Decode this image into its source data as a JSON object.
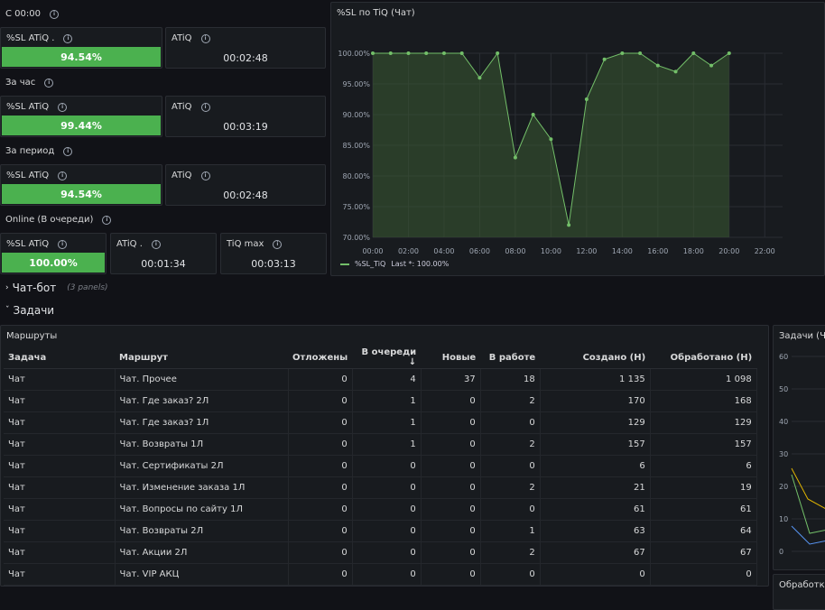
{
  "colors": {
    "accent_green": "#4bb14f",
    "panel_bg": "#181b1f",
    "page_bg": "#111217",
    "line_green": "#73bf69"
  },
  "sections": {
    "since_midnight": "С 00:00",
    "per_hour": "За час",
    "per_period": "За период",
    "online": "Online (В очереди)"
  },
  "stats": {
    "sl_midnight": {
      "title": "%SL ATiQ .",
      "value": "94.54%"
    },
    "atiq_midnight": {
      "title": "ATiQ",
      "value": "00:02:48"
    },
    "sl_hour": {
      "title": "%SL ATiQ",
      "value": "99.44%"
    },
    "atiq_hour": {
      "title": "ATiQ",
      "value": "00:03:19"
    },
    "sl_period": {
      "title": "%SL ATiQ",
      "value": "94.54%"
    },
    "atiq_period": {
      "title": "ATiQ",
      "value": "00:02:48"
    },
    "sl_online": {
      "title": "%SL ATiQ",
      "value": "100.00%"
    },
    "atiq_online": {
      "title": "ATiQ .",
      "value": "00:01:34"
    },
    "tiq_max": {
      "title": "TiQ max",
      "value": "00:03:13"
    }
  },
  "chart_panel": {
    "title": "%SL по TiQ (Чат)",
    "legend_series": "%SL_TiQ",
    "legend_last": "Last *: 100.00%"
  },
  "chart_data": {
    "type": "area",
    "ylim": [
      70,
      100
    ],
    "yticks": [
      "100.00%",
      "95.00%",
      "90.00%",
      "85.00%",
      "80.00%",
      "75.00%",
      "70.00%"
    ],
    "xticks": [
      "00:00",
      "02:00",
      "04:00",
      "06:00",
      "08:00",
      "10:00",
      "12:00",
      "14:00",
      "16:00",
      "18:00",
      "20:00",
      "22:00"
    ],
    "xlim": [
      0,
      23
    ],
    "x": [
      0,
      1,
      2,
      3,
      4,
      5,
      6,
      7,
      8,
      9,
      10,
      11,
      12,
      13,
      14,
      15,
      16,
      17,
      18,
      19,
      20
    ],
    "series": [
      {
        "name": "%SL_TiQ",
        "values": [
          100,
          100,
          100,
          100,
          100,
          100,
          96,
          100,
          83,
          90,
          86,
          72,
          92.5,
          99,
          100,
          100,
          98,
          97,
          100,
          98,
          100
        ]
      }
    ]
  },
  "rows": {
    "chatbot": {
      "title": "Чат-бот",
      "sub": "(3 panels)"
    },
    "tasks": {
      "title": "Задачи"
    }
  },
  "routes_panel": {
    "title": "Маршруты",
    "headers": [
      "Задача",
      "Маршрут",
      "Отложены",
      "В очереди",
      "Новые",
      "В работе",
      "Создано (Н)",
      "Обработано (Н)"
    ],
    "sort_icon": "↓",
    "rows": [
      [
        "Чат",
        "Чат. Прочее",
        "0",
        "4",
        "37",
        "18",
        "1 135",
        "1 098"
      ],
      [
        "Чат",
        "Чат. Где заказ? 2Л",
        "0",
        "1",
        "0",
        "2",
        "170",
        "168"
      ],
      [
        "Чат",
        "Чат. Где заказ? 1Л",
        "0",
        "1",
        "0",
        "0",
        "129",
        "129"
      ],
      [
        "Чат",
        "Чат. Возвраты 1Л",
        "0",
        "1",
        "0",
        "2",
        "157",
        "157"
      ],
      [
        "Чат",
        "Чат. Сертификаты 2Л",
        "0",
        "0",
        "0",
        "0",
        "6",
        "6"
      ],
      [
        "Чат",
        "Чат. Изменение заказа 1Л",
        "0",
        "0",
        "0",
        "2",
        "21",
        "19"
      ],
      [
        "Чат",
        "Чат. Вопросы по сайту 1Л",
        "0",
        "0",
        "0",
        "0",
        "61",
        "61"
      ],
      [
        "Чат",
        "Чат. Возвраты 2Л",
        "0",
        "0",
        "0",
        "1",
        "63",
        "64"
      ],
      [
        "Чат",
        "Чат. Акции 2Л",
        "0",
        "0",
        "0",
        "2",
        "67",
        "67"
      ],
      [
        "Чат",
        "Чат. VIP АКЦ",
        "0",
        "0",
        "0",
        "0",
        "0",
        "0"
      ]
    ]
  },
  "tasks_chart_panel": {
    "title": "Задачи (Ча",
    "yticks": [
      "60",
      "50",
      "40",
      "30",
      "20",
      "10",
      "0"
    ]
  },
  "processed_panel": {
    "title": "Обработка"
  }
}
